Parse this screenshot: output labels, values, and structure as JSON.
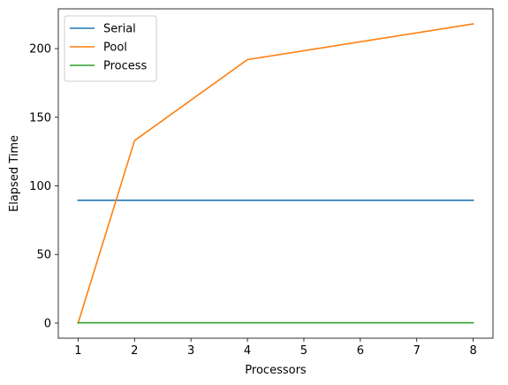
{
  "chart_data": {
    "type": "line",
    "xlabel": "Processors",
    "ylabel": "Elapsed Time",
    "x": [
      1,
      2,
      4,
      8
    ],
    "xlim": [
      0.65,
      8.35
    ],
    "ylim": [
      -11,
      229
    ],
    "xticks": [
      1,
      2,
      3,
      4,
      5,
      6,
      7,
      8
    ],
    "yticks": [
      0,
      50,
      100,
      150,
      200
    ],
    "grid": false,
    "legend_position": "upper-left",
    "series": [
      {
        "name": "Serial",
        "color": "#1f77b4",
        "values": [
          89.5,
          89.5,
          89.5,
          89.5
        ]
      },
      {
        "name": "Pool",
        "color": "#ff7f0e",
        "values": [
          0,
          133,
          192,
          218
        ]
      },
      {
        "name": "Process",
        "color": "#2ca02c",
        "values": [
          0.2,
          0.2,
          0.2,
          0.2
        ]
      }
    ]
  }
}
